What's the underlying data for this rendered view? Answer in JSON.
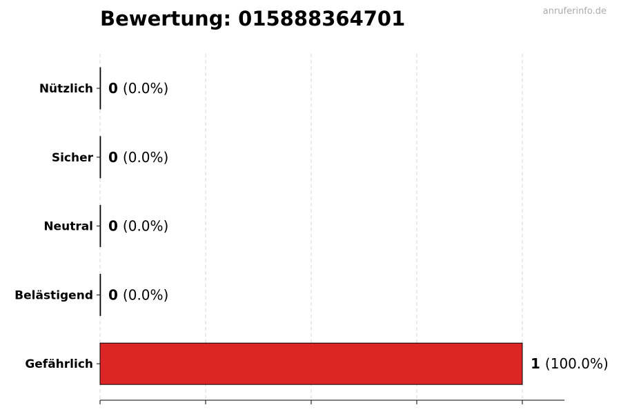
{
  "chart_data": {
    "type": "bar",
    "orientation": "horizontal",
    "title": "Bewertung: 015888364701",
    "watermark": "anruferinfo.de",
    "categories": [
      "Nützlich",
      "Sicher",
      "Neutral",
      "Belästigend",
      "Gefährlich"
    ],
    "values": [
      0,
      0,
      0,
      0,
      1
    ],
    "value_labels": [
      {
        "count": "0",
        "pct": "(0.0%)"
      },
      {
        "count": "0",
        "pct": "(0.0%)"
      },
      {
        "count": "0",
        "pct": "(0.0%)"
      },
      {
        "count": "0",
        "pct": "(0.0%)"
      },
      {
        "count": "1",
        "pct": "(100.0%)"
      }
    ],
    "xlim": [
      0,
      1.1
    ],
    "xticks": [
      0,
      0.25,
      0.5,
      0.75,
      1
    ],
    "xtick_labels_shown": false,
    "grid": "x dashed",
    "colors": {
      "bar": "#dc2626",
      "edge": "#000000",
      "grid": "#cccccc"
    }
  }
}
